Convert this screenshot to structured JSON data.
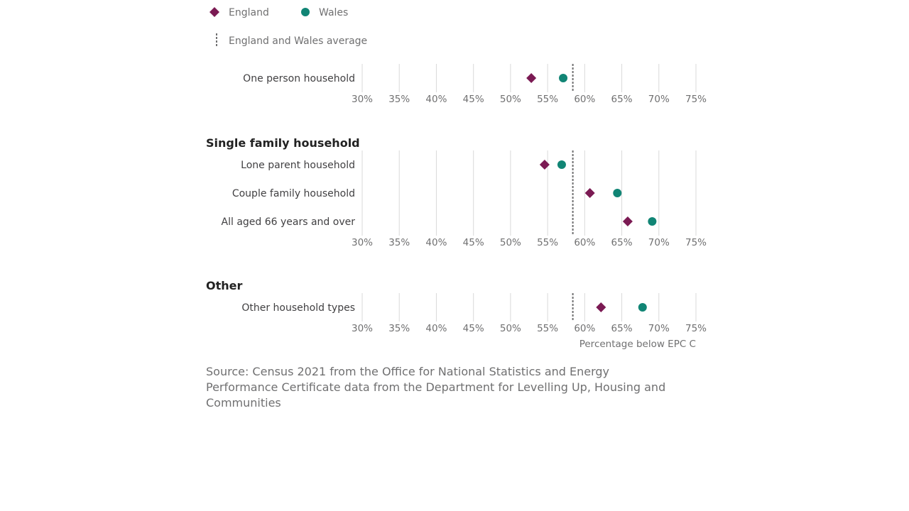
{
  "legend": {
    "england_label": "England",
    "wales_label": "Wales",
    "average_label": "England and Wales average"
  },
  "colors": {
    "england": "#7b1a53",
    "wales": "#118575",
    "average": "#707071",
    "grid": "#d9d9d9"
  },
  "chart_data": {
    "type": "scatter",
    "xlabel": "Percentage below EPC C",
    "xlim": [
      30,
      75
    ],
    "x_ticks": [
      "30%",
      "35%",
      "40%",
      "45%",
      "50%",
      "55%",
      "60%",
      "65%",
      "70%",
      "75%"
    ],
    "average": 58.4,
    "series": [
      {
        "name": "England",
        "marker": "diamond"
      },
      {
        "name": "Wales",
        "marker": "circle"
      }
    ],
    "groups": [
      {
        "title": "",
        "rows": [
          {
            "label": "One person household",
            "england": 52.8,
            "wales": 57.1
          }
        ]
      },
      {
        "title": "Single family household",
        "rows": [
          {
            "label": "Lone parent household",
            "england": 54.6,
            "wales": 56.9
          },
          {
            "label": "Couple family household",
            "england": 60.7,
            "wales": 64.4
          },
          {
            "label": "All aged 66 years and over",
            "england": 65.8,
            "wales": 69.1
          }
        ]
      },
      {
        "title": "Other",
        "rows": [
          {
            "label": "Other household types",
            "england": 62.2,
            "wales": 67.8
          }
        ]
      }
    ]
  },
  "source": "Source: Census 2021 from the Office for National Statistics and Energy Performance Certificate data from the Department for Levelling Up, Housing and Communities"
}
